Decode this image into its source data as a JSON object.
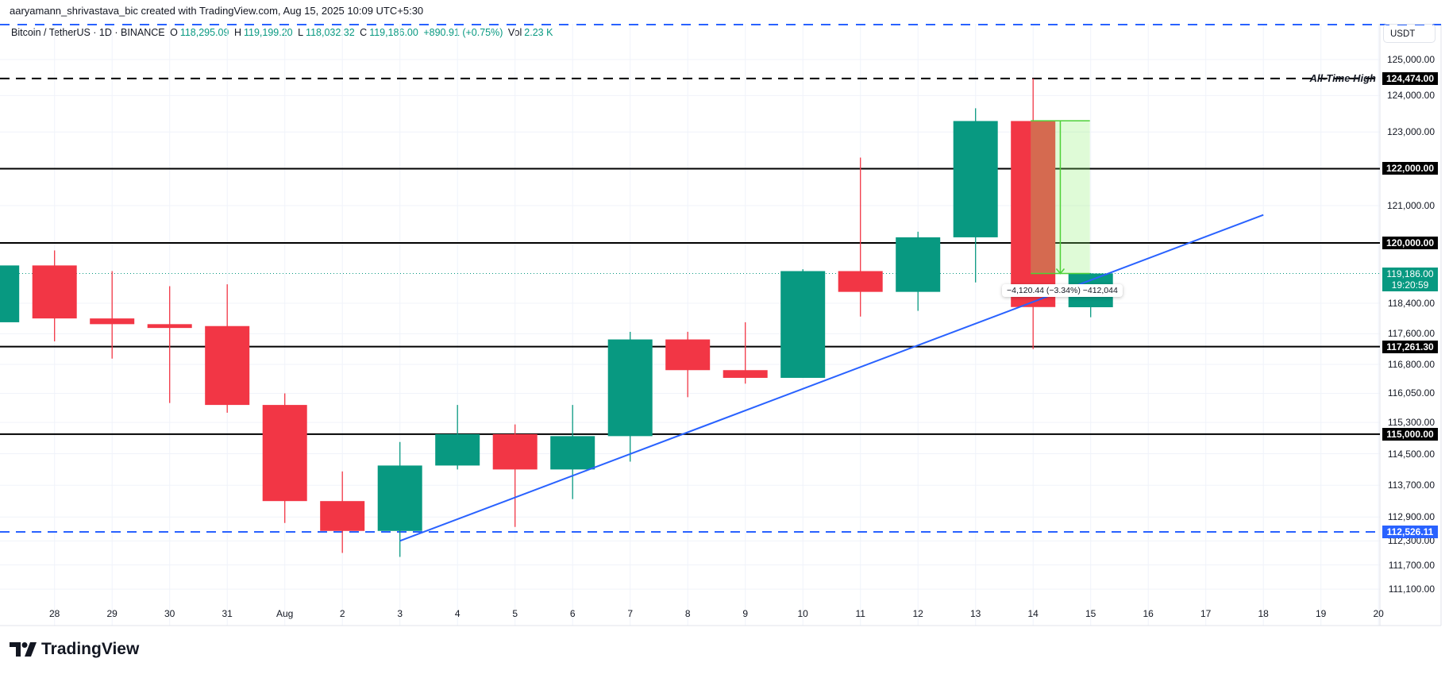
{
  "header": {
    "attribution": "aaryamann_shrivastava_bic created with TradingView.com, Aug 15, 2025 10:09 UTC+5:30"
  },
  "legend": {
    "symbol": "Bitcoin / TetherUS · 1D · BINANCE",
    "o_label": "O",
    "o": "118,295.09",
    "h_label": "H",
    "h": "119,199.20",
    "l_label": "L",
    "l": "118,032.32",
    "c_label": "C",
    "c": "119,186.00",
    "change": "+890.91 (+0.75%)",
    "vol_label": "Vol",
    "vol": "2.23 K"
  },
  "price_axis": {
    "currency": "USDT",
    "ticks": [
      "125,000.00",
      "124,000.00",
      "123,000.00",
      "121,000.00",
      "118,400.00",
      "117,600.00",
      "116,800.00",
      "116,050.00",
      "115,300.00",
      "114,500.00",
      "113,700.00",
      "112,900.00",
      "112,300.00",
      "111,700.00",
      "111,100.00"
    ],
    "scale": "log"
  },
  "levels": [
    {
      "value": "124,474.00",
      "style": "dashed",
      "color": "#000000",
      "label": "All-Time High"
    },
    {
      "value": "122,000.00",
      "style": "solid",
      "color": "#000000"
    },
    {
      "value": "120,000.00",
      "style": "solid",
      "color": "#000000"
    },
    {
      "value": "117,261.30",
      "style": "solid",
      "color": "#000000"
    },
    {
      "value": "115,000.00",
      "style": "solid",
      "color": "#000000"
    },
    {
      "value": "112,526.11",
      "style": "dashed",
      "color": "#2962ff"
    }
  ],
  "current_price": {
    "value": "119,186.00",
    "countdown": "19:20:59",
    "color": "#089981"
  },
  "measure": {
    "text": "−4,120.44 (−3.34%) −412,044",
    "from": 123306.44,
    "to": 119186.0
  },
  "trendline": {
    "from": {
      "date": "Aug 3",
      "price": 112300
    },
    "to": {
      "date": "Aug 18",
      "price": 120750
    },
    "color": "#2962ff"
  },
  "watermark": "TradingView",
  "chart_data": {
    "type": "candlestick",
    "title": "Bitcoin / TetherUS · 1D · BINANCE",
    "time_ticks": [
      "28",
      "29",
      "30",
      "31",
      "Aug",
      "2",
      "3",
      "4",
      "5",
      "6",
      "7",
      "8",
      "9",
      "10",
      "11",
      "12",
      "13",
      "14",
      "15",
      "16",
      "17",
      "18",
      "19",
      "20"
    ],
    "up_color": "#089981",
    "down_color": "#f23645",
    "candles": [
      {
        "date": "Jul 27",
        "o": 117900,
        "h": 119500,
        "l": 117800,
        "c": 119400
      },
      {
        "date": "Jul 28",
        "o": 119400,
        "h": 119800,
        "l": 117400,
        "c": 118000
      },
      {
        "date": "Jul 29",
        "o": 118000,
        "h": 119250,
        "l": 116950,
        "c": 117850
      },
      {
        "date": "Jul 30",
        "o": 117850,
        "h": 118850,
        "l": 115800,
        "c": 117750
      },
      {
        "date": "Jul 31",
        "o": 117800,
        "h": 118900,
        "l": 115550,
        "c": 115750
      },
      {
        "date": "Aug 1",
        "o": 115750,
        "h": 116050,
        "l": 112750,
        "c": 113300
      },
      {
        "date": "Aug 2",
        "o": 113300,
        "h": 114050,
        "l": 112000,
        "c": 112550
      },
      {
        "date": "Aug 3",
        "o": 112550,
        "h": 114800,
        "l": 111900,
        "c": 114200
      },
      {
        "date": "Aug 4",
        "o": 114200,
        "h": 115750,
        "l": 114100,
        "c": 115000
      },
      {
        "date": "Aug 5",
        "o": 115000,
        "h": 115250,
        "l": 112650,
        "c": 114100
      },
      {
        "date": "Aug 6",
        "o": 114100,
        "h": 115750,
        "l": 113350,
        "c": 114950
      },
      {
        "date": "Aug 7",
        "o": 114950,
        "h": 117650,
        "l": 114300,
        "c": 117450
      },
      {
        "date": "Aug 8",
        "o": 117450,
        "h": 117650,
        "l": 115950,
        "c": 116650
      },
      {
        "date": "Aug 9",
        "o": 116650,
        "h": 117900,
        "l": 116300,
        "c": 116450
      },
      {
        "date": "Aug 10",
        "o": 116450,
        "h": 119300,
        "l": 116450,
        "c": 119250
      },
      {
        "date": "Aug 11",
        "o": 119250,
        "h": 122300,
        "l": 118050,
        "c": 118700
      },
      {
        "date": "Aug 12",
        "o": 118700,
        "h": 120300,
        "l": 118200,
        "c": 120150
      },
      {
        "date": "Aug 13",
        "o": 120150,
        "h": 123650,
        "l": 118950,
        "c": 123300
      },
      {
        "date": "Aug 14",
        "o": 123300,
        "h": 124474,
        "l": 117200,
        "c": 118300
      },
      {
        "date": "Aug 15",
        "o": 118295.09,
        "h": 119199.2,
        "l": 118032.32,
        "c": 119186.0
      }
    ]
  }
}
